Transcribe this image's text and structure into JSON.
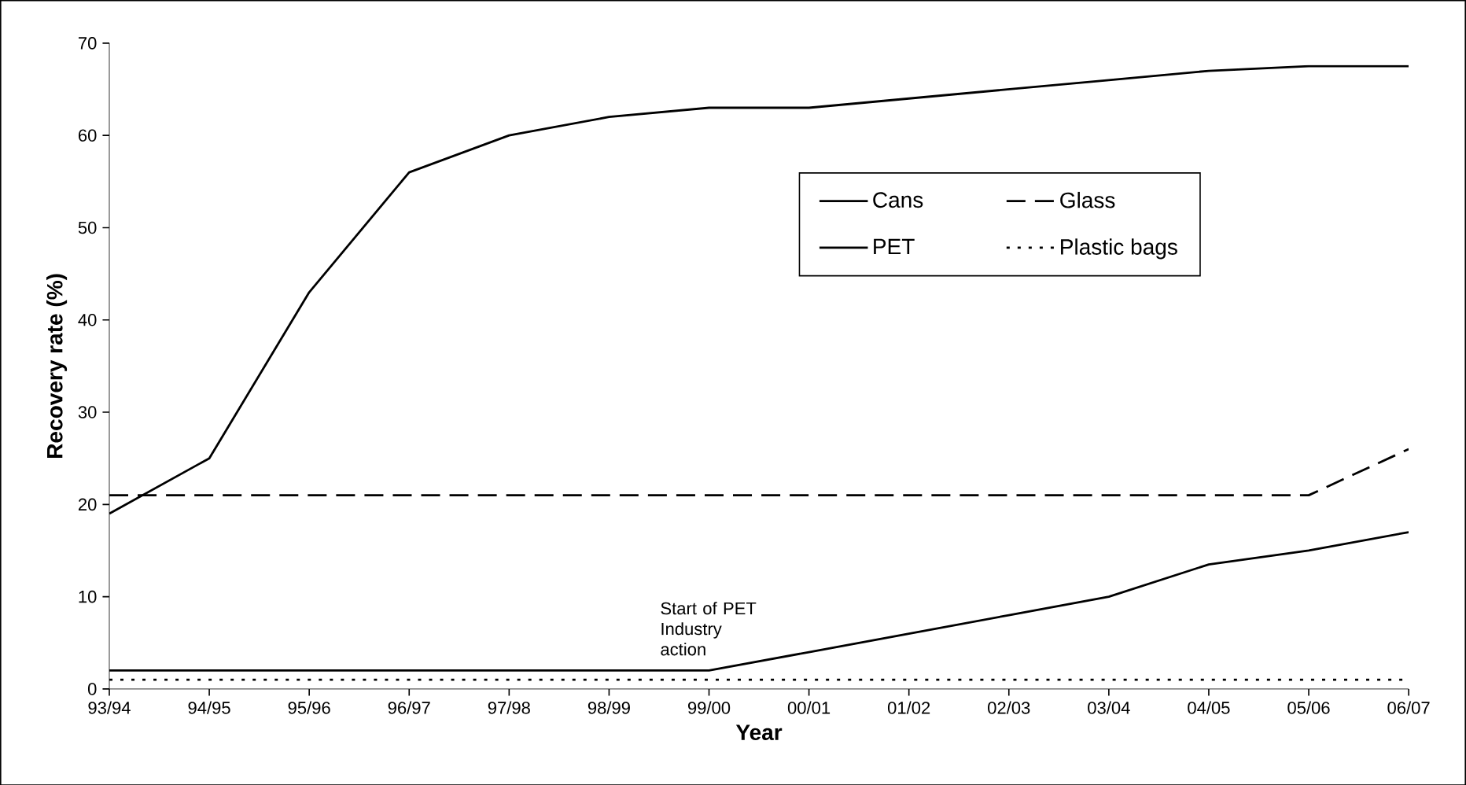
{
  "chart_data": {
    "type": "line",
    "xlabel": "Year",
    "ylabel": "Recovery rate (%)",
    "categories": [
      "93/94",
      "94/95",
      "95/96",
      "96/97",
      "97/98",
      "98/99",
      "99/00",
      "00/01",
      "01/02",
      "02/03",
      "03/04",
      "04/05",
      "05/06",
      "06/07"
    ],
    "series": [
      {
        "name": "Cans",
        "color": "#000000",
        "line_style": "solid",
        "values": [
          19,
          25,
          43,
          56,
          60,
          62,
          63,
          63,
          64,
          65,
          66,
          67,
          67.5,
          67.5
        ]
      },
      {
        "name": "Glass",
        "color": "#000000",
        "line_style": "dashed",
        "values": [
          21,
          21,
          21,
          21,
          21,
          21,
          21,
          21,
          21,
          21,
          21,
          21,
          21,
          26
        ]
      },
      {
        "name": "PET",
        "color": "#000000",
        "line_style": "solid",
        "values": [
          2,
          2,
          2,
          2,
          2,
          2,
          2,
          4,
          6,
          8,
          10,
          13.5,
          15,
          17
        ]
      },
      {
        "name": "Plastic bags",
        "color": "#000000",
        "line_style": "dotted",
        "values": [
          1,
          1,
          1,
          1,
          1,
          1,
          1,
          1,
          1,
          1,
          1,
          1,
          1,
          1
        ]
      }
    ],
    "ylim": [
      0,
      70
    ],
    "yticks": [
      0,
      10,
      20,
      30,
      40,
      50,
      60,
      70
    ],
    "grid": false,
    "legend": "top right",
    "marker": "none",
    "annotations": [
      {
        "text": "Start of PET Industry action",
        "x": "99/00",
        "y": 2
      }
    ]
  }
}
